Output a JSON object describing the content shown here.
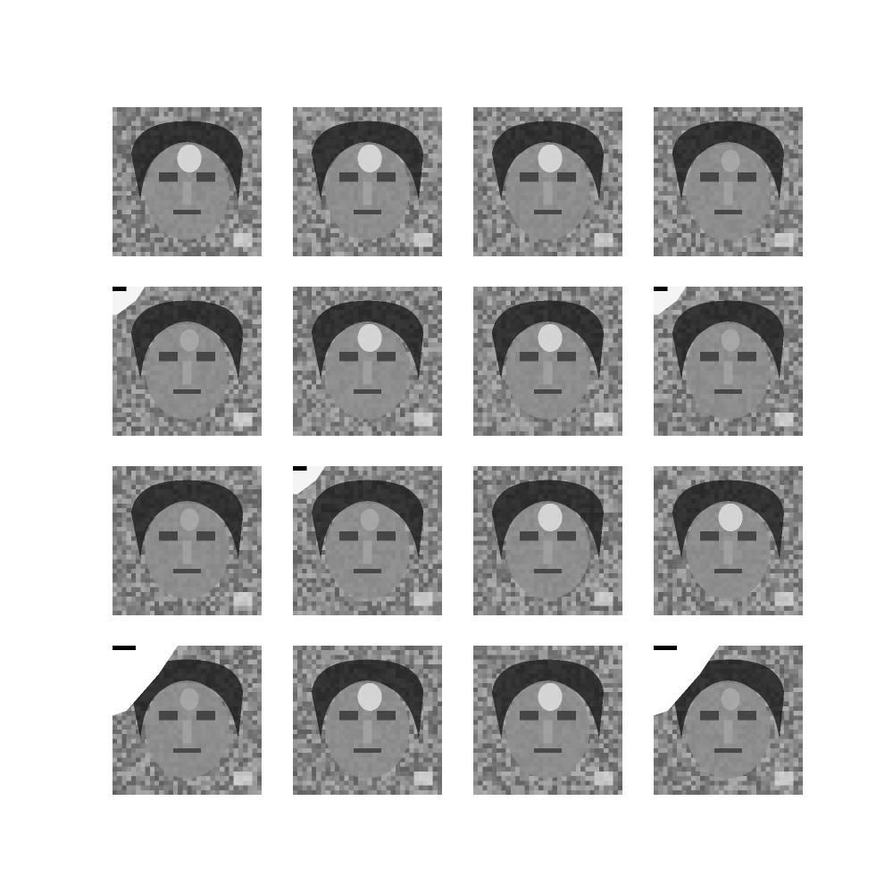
{
  "figure": {
    "rows": 4,
    "cols": 4,
    "colormap": "gray",
    "background_color": "#ffffff",
    "samples": [
      {
        "id": "sample-1",
        "corner_artifact": false,
        "forehead_highlight": true
      },
      {
        "id": "sample-2",
        "corner_artifact": false,
        "forehead_highlight": true
      },
      {
        "id": "sample-3",
        "corner_artifact": false,
        "forehead_highlight": true
      },
      {
        "id": "sample-4",
        "corner_artifact": false,
        "forehead_highlight": false
      },
      {
        "id": "sample-5",
        "corner_artifact": true,
        "forehead_highlight": false
      },
      {
        "id": "sample-6",
        "corner_artifact": false,
        "forehead_highlight": true
      },
      {
        "id": "sample-7",
        "corner_artifact": false,
        "forehead_highlight": true
      },
      {
        "id": "sample-8",
        "corner_artifact": true,
        "forehead_highlight": false
      },
      {
        "id": "sample-9",
        "corner_artifact": false,
        "forehead_highlight": false
      },
      {
        "id": "sample-10",
        "corner_artifact": true,
        "forehead_highlight": false
      },
      {
        "id": "sample-11",
        "corner_artifact": false,
        "forehead_highlight": true
      },
      {
        "id": "sample-12",
        "corner_artifact": false,
        "forehead_highlight": true
      },
      {
        "id": "sample-13",
        "corner_artifact": true,
        "forehead_highlight": false,
        "large_artifact": true
      },
      {
        "id": "sample-14",
        "corner_artifact": false,
        "forehead_highlight": true
      },
      {
        "id": "sample-15",
        "corner_artifact": false,
        "forehead_highlight": true
      },
      {
        "id": "sample-16",
        "corner_artifact": true,
        "forehead_highlight": false,
        "large_artifact": true
      }
    ]
  }
}
